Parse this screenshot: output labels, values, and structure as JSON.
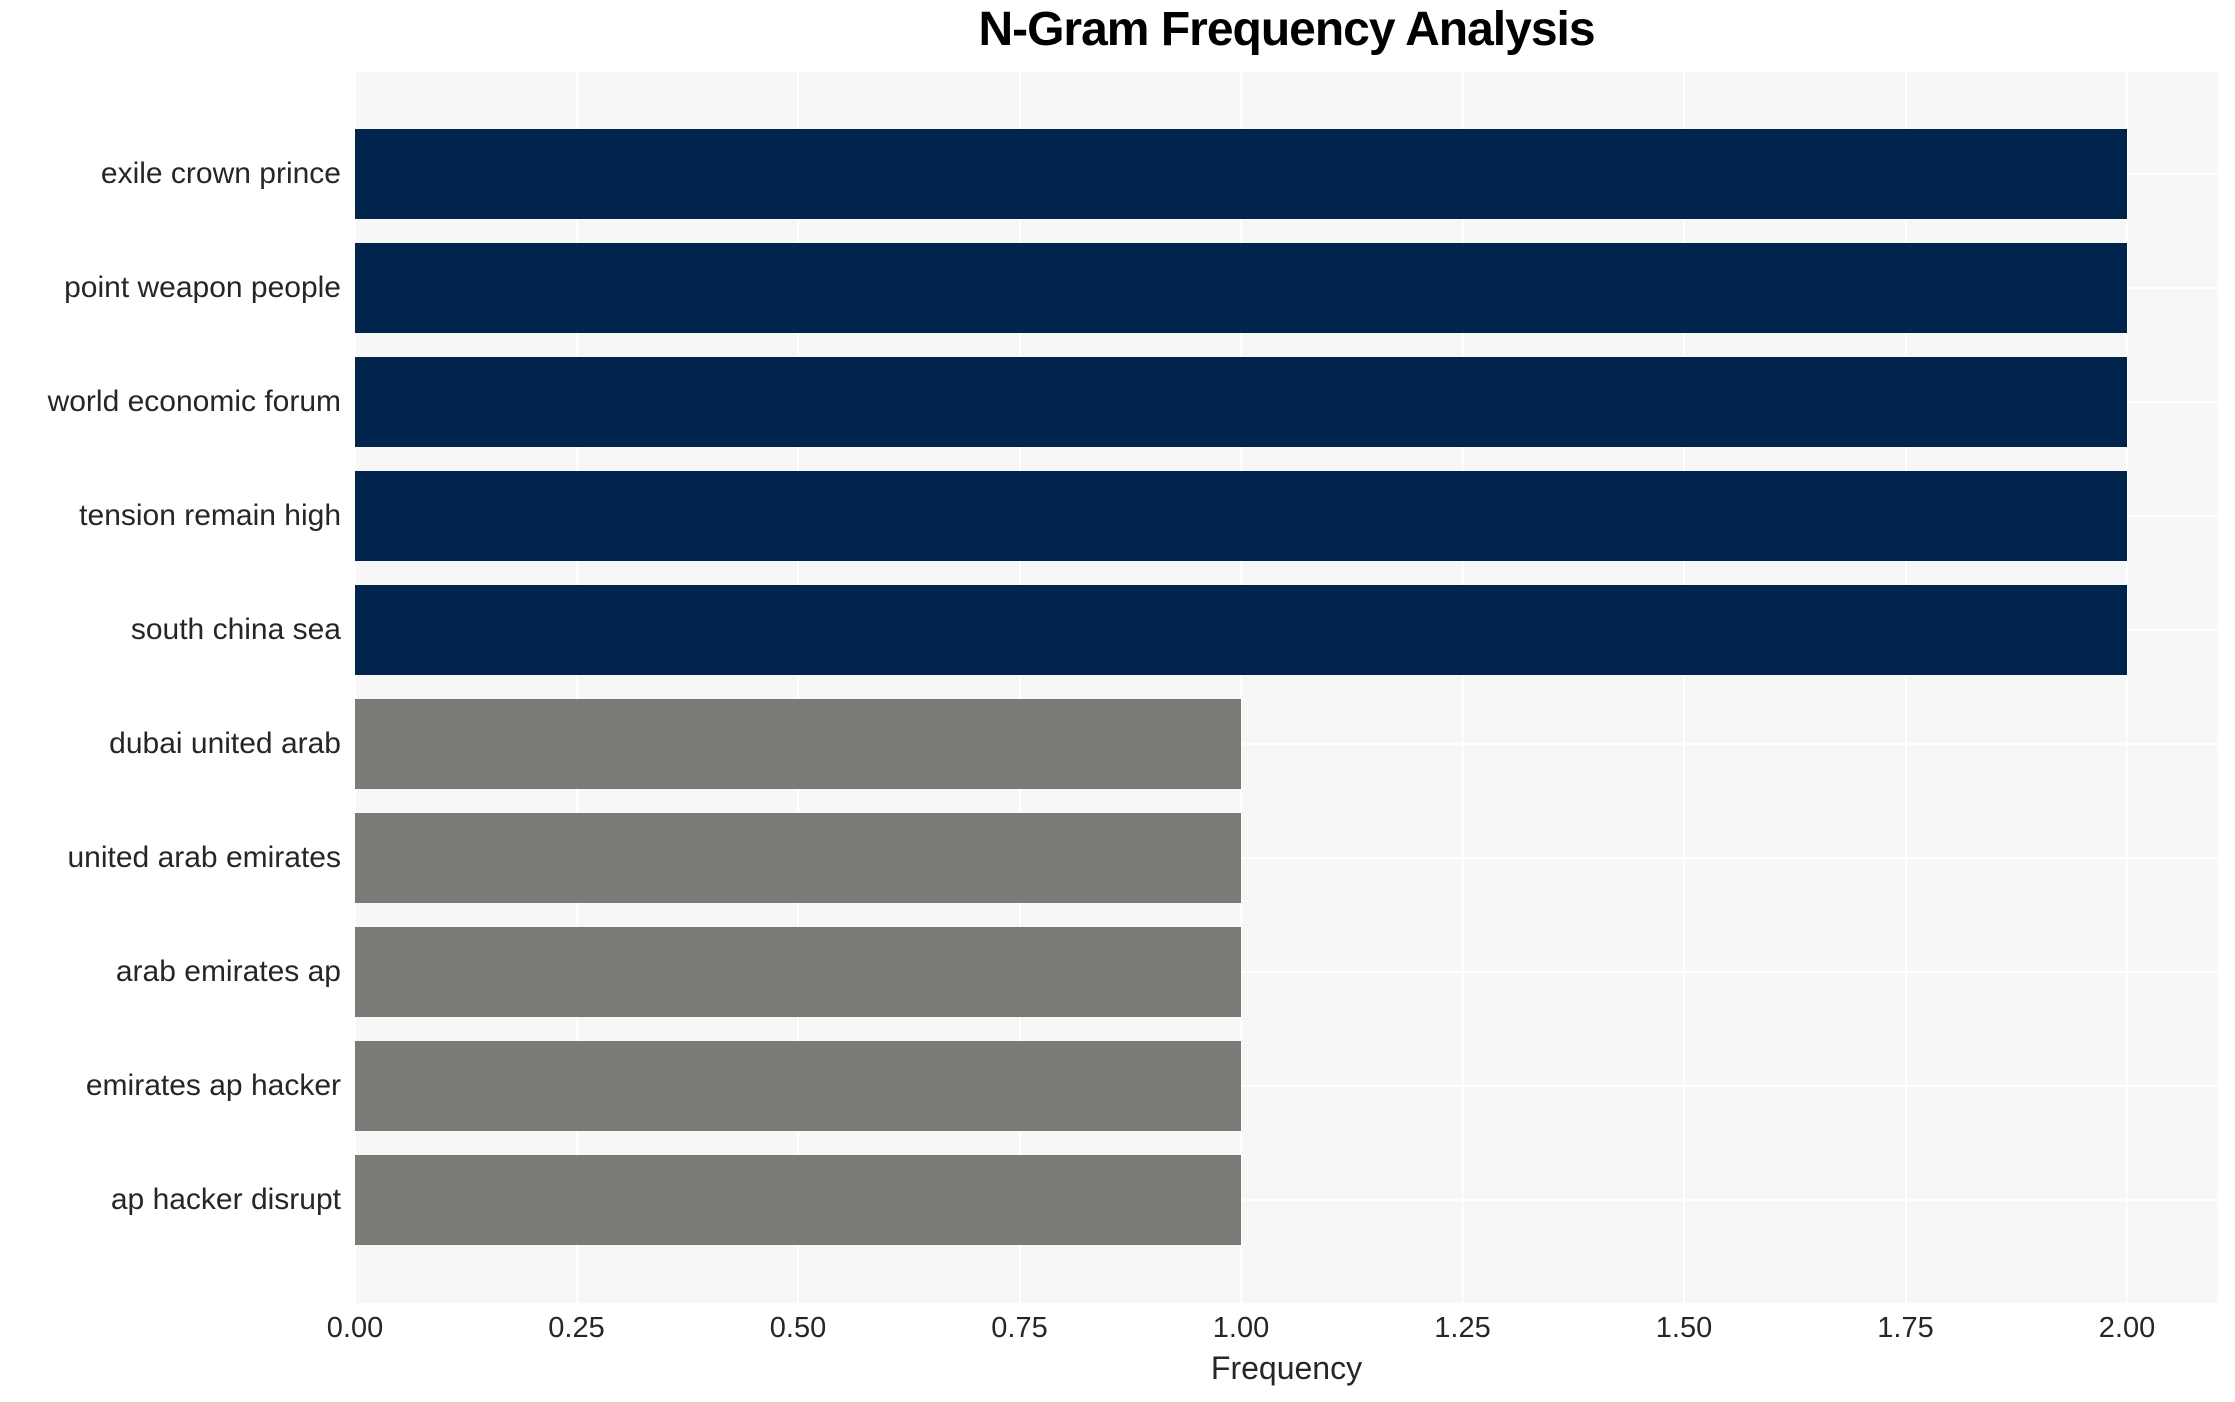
{
  "chart_data": {
    "type": "bar",
    "orientation": "horizontal",
    "title": "N-Gram Frequency Analysis",
    "xlabel": "Frequency",
    "ylabel": "",
    "categories": [
      "exile crown prince",
      "point weapon people",
      "world economic forum",
      "tension remain high",
      "south china sea",
      "dubai united arab",
      "united arab emirates",
      "arab emirates ap",
      "emirates ap hacker",
      "ap hacker disrupt"
    ],
    "values": [
      2,
      2,
      2,
      2,
      2,
      1,
      1,
      1,
      1,
      1
    ],
    "x_ticks": [
      "0.00",
      "0.25",
      "0.50",
      "0.75",
      "1.00",
      "1.25",
      "1.50",
      "1.75",
      "2.00"
    ],
    "xlim": [
      0,
      2.1
    ],
    "grid": true,
    "legend": false,
    "bar_colors": [
      "#01244d",
      "#01244d",
      "#01244d",
      "#01244d",
      "#01244d",
      "#7a7a76",
      "#7a7a76",
      "#7a7a76",
      "#7a7a76",
      "#7a7a76"
    ],
    "colors": {
      "bar_high_frequency": "#01244d",
      "bar_low_frequency": "#7a7a76",
      "plot_background": "#f7f7f7",
      "grid_line": "#ffffff",
      "tick_text": "#262626",
      "title_text": "#000000",
      "figure_background": "#ffffff"
    }
  }
}
